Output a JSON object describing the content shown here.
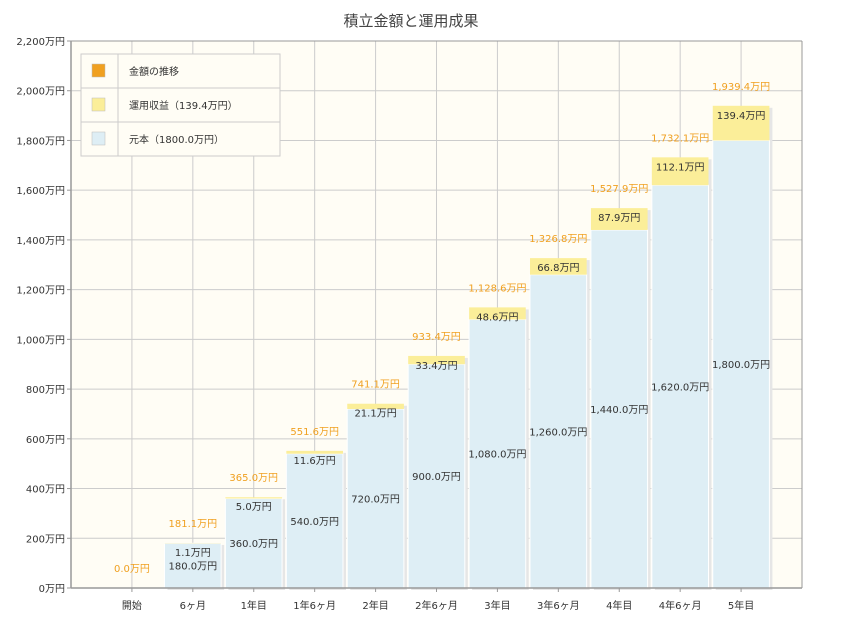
{
  "chart_data": {
    "type": "bar",
    "stacked": true,
    "title": "積立金額と運用成果",
    "categories": [
      "開始",
      "6ヶ月",
      "1年目",
      "1年6ヶ月",
      "2年目",
      "2年6ヶ月",
      "3年目",
      "3年6ヶ月",
      "4年目",
      "4年6ヶ月",
      "5年目"
    ],
    "series": [
      {
        "name": "元本（1800.0万円）",
        "color": "#deeef5",
        "values": [
          0,
          180,
          360,
          540,
          720,
          900,
          1080,
          1260,
          1440,
          1620,
          1800
        ],
        "labels": [
          "",
          "180.0万円",
          "360.0万円",
          "540.0万円",
          "720.0万円",
          "900.0万円",
          "1,080.0万円",
          "1,260.0万円",
          "1,440.0万円",
          "1,620.0万円",
          "1,800.0万円"
        ]
      },
      {
        "name": "運用収益（139.4万円）",
        "color": "#fbee99",
        "values": [
          0,
          1.1,
          5.0,
          11.6,
          21.1,
          33.4,
          48.6,
          66.8,
          87.9,
          112.1,
          139.4
        ],
        "labels": [
          "",
          "1.1万円",
          "5.0万円",
          "11.6万円",
          "21.1万円",
          "33.4万円",
          "48.6万円",
          "66.8万円",
          "87.9万円",
          "112.1万円",
          "139.4万円"
        ]
      }
    ],
    "totals": {
      "name": "金額の推移",
      "color": "#f0a020",
      "values": [
        0,
        181.1,
        365.0,
        551.6,
        741.1,
        933.4,
        1128.6,
        1326.8,
        1527.9,
        1732.1,
        1939.4
      ],
      "labels": [
        "0.0万円",
        "181.1万円",
        "365.0万円",
        "551.6万円",
        "741.1万円",
        "933.4万円",
        "1,128.6万円",
        "1,326.8万円",
        "1,527.9万円",
        "1,732.1万円",
        "1,939.4万円"
      ]
    },
    "ylim": [
      0,
      2200
    ],
    "yticks": [
      0,
      200,
      400,
      600,
      800,
      1000,
      1200,
      1400,
      1600,
      1800,
      2000,
      2200
    ],
    "ytick_labels": [
      "0万円",
      "200万円",
      "400万円",
      "600万円",
      "800万円",
      "1,000万円",
      "1,200万円",
      "1,400万円",
      "1,600万円",
      "1,800万円",
      "2,000万円",
      "2,200万円"
    ],
    "grid": true,
    "legend_position": "top-left",
    "legend": [
      "金額の推移",
      "運用収益（139.4万円）",
      "元本（1800.0万円）"
    ],
    "plot_background": "#fffdf5"
  }
}
